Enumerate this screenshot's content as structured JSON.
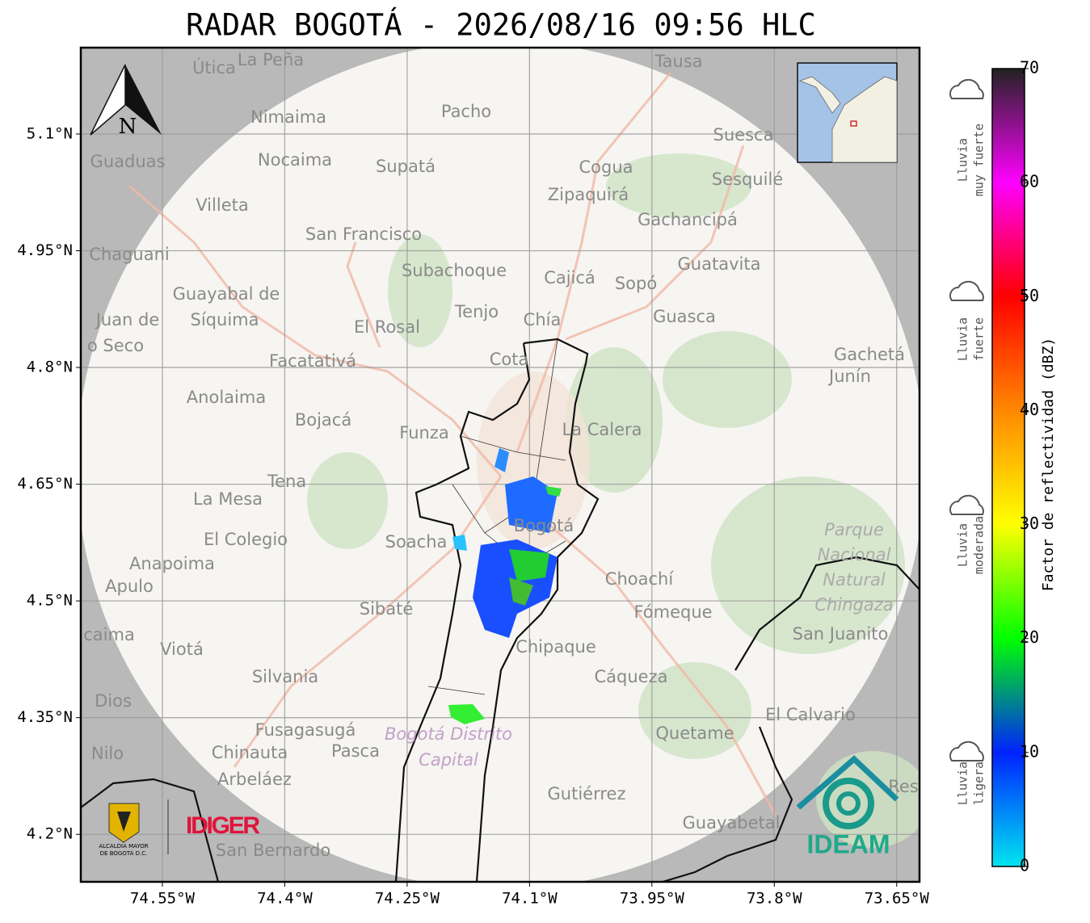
{
  "title": "RADAR BOGOTÁ - 2026/08/16 09:56 HLC",
  "map": {
    "xlim": [
      -74.65,
      -73.622
    ],
    "ylim": [
      4.139,
      5.211
    ],
    "xticks": [
      {
        "value": -74.55,
        "label": "74.55°W"
      },
      {
        "value": -74.4,
        "label": "74.4°W"
      },
      {
        "value": -74.25,
        "label": "74.25°W"
      },
      {
        "value": -74.1,
        "label": "74.1°W"
      },
      {
        "value": -73.95,
        "label": "73.95°W"
      },
      {
        "value": -73.8,
        "label": "73.8°W"
      },
      {
        "value": -73.65,
        "label": "73.65°W"
      }
    ],
    "yticks": [
      {
        "value": 5.1,
        "label": "5.1°N"
      },
      {
        "value": 4.95,
        "label": "4.95°N"
      },
      {
        "value": 4.8,
        "label": "4.8°N"
      },
      {
        "value": 4.65,
        "label": "4.65°N"
      },
      {
        "value": 4.5,
        "label": "4.5°N"
      },
      {
        "value": 4.35,
        "label": "4.35°N"
      },
      {
        "value": 4.2,
        "label": "4.2°N"
      }
    ],
    "north": "N",
    "places": [
      "Útica",
      "La Peña",
      "Tausa",
      "Pacho",
      "Nimaima",
      "Guaduas",
      "Nocaima",
      "Supatá",
      "Cogua",
      "Suesca",
      "Sesquilé",
      "Zipaquirá",
      "Villeta",
      "Gachancipá",
      "San Francisco",
      "Chaguani",
      "Guatavita",
      "Subachoque",
      "Cajicá",
      "Sopó",
      "Guayabal de",
      "Síquima",
      "Juan de",
      "o Seco",
      "Tenjo",
      "Chía",
      "Guasca",
      "El Rosal",
      "Facatativá",
      "Cota",
      "Gachetá",
      "Junín",
      "Anolaima",
      "Bojacá",
      "Funza",
      "La Calera",
      "Tena",
      "La Mesa",
      "Bogotá",
      "Soacha",
      "El Colegio",
      "Anapoima",
      "Apulo",
      "Choachí",
      "Sibaté",
      "Fómeque",
      "San Juanito",
      "caima",
      "Viotá",
      "Chipaque",
      "Silvania",
      "Cáqueza",
      "Dios",
      "El Calvario",
      "Fusagasugá",
      "Quetame",
      "Nilo",
      "Chinauta",
      "Pasca",
      "Arbeláez",
      "Gutiérrez",
      "Res",
      "Guayabetal",
      "San Bernardo"
    ],
    "park": [
      "Parque",
      "Nacional",
      "Natural",
      "Chingaza"
    ],
    "district": [
      "Bogotá Distrito",
      "Capital"
    ],
    "logos": {
      "alcaldia": [
        "ALCALDÍA MAYOR",
        "DE BOGOTÁ D.C."
      ],
      "idiger": "IDIGER",
      "ideam": "IDEAM"
    }
  },
  "colorbar": {
    "label": "Factor de reflectividad (dBZ)",
    "lim": [
      0,
      70
    ],
    "ticks": [
      0,
      10,
      20,
      30,
      40,
      50,
      60,
      70
    ],
    "colors": [
      "#00e5f0",
      "#0022ff",
      "#00ff00",
      "#ffff00",
      "#ff8800",
      "#ff0000",
      "#ff00ff",
      "#222222"
    ],
    "categories": [
      [
        "Lluvia",
        "muy fuerte"
      ],
      [
        "Lluvia",
        "fuerte"
      ],
      [
        "Lluvia",
        "moderada"
      ],
      [
        "Lluvia",
        "ligera"
      ]
    ]
  }
}
